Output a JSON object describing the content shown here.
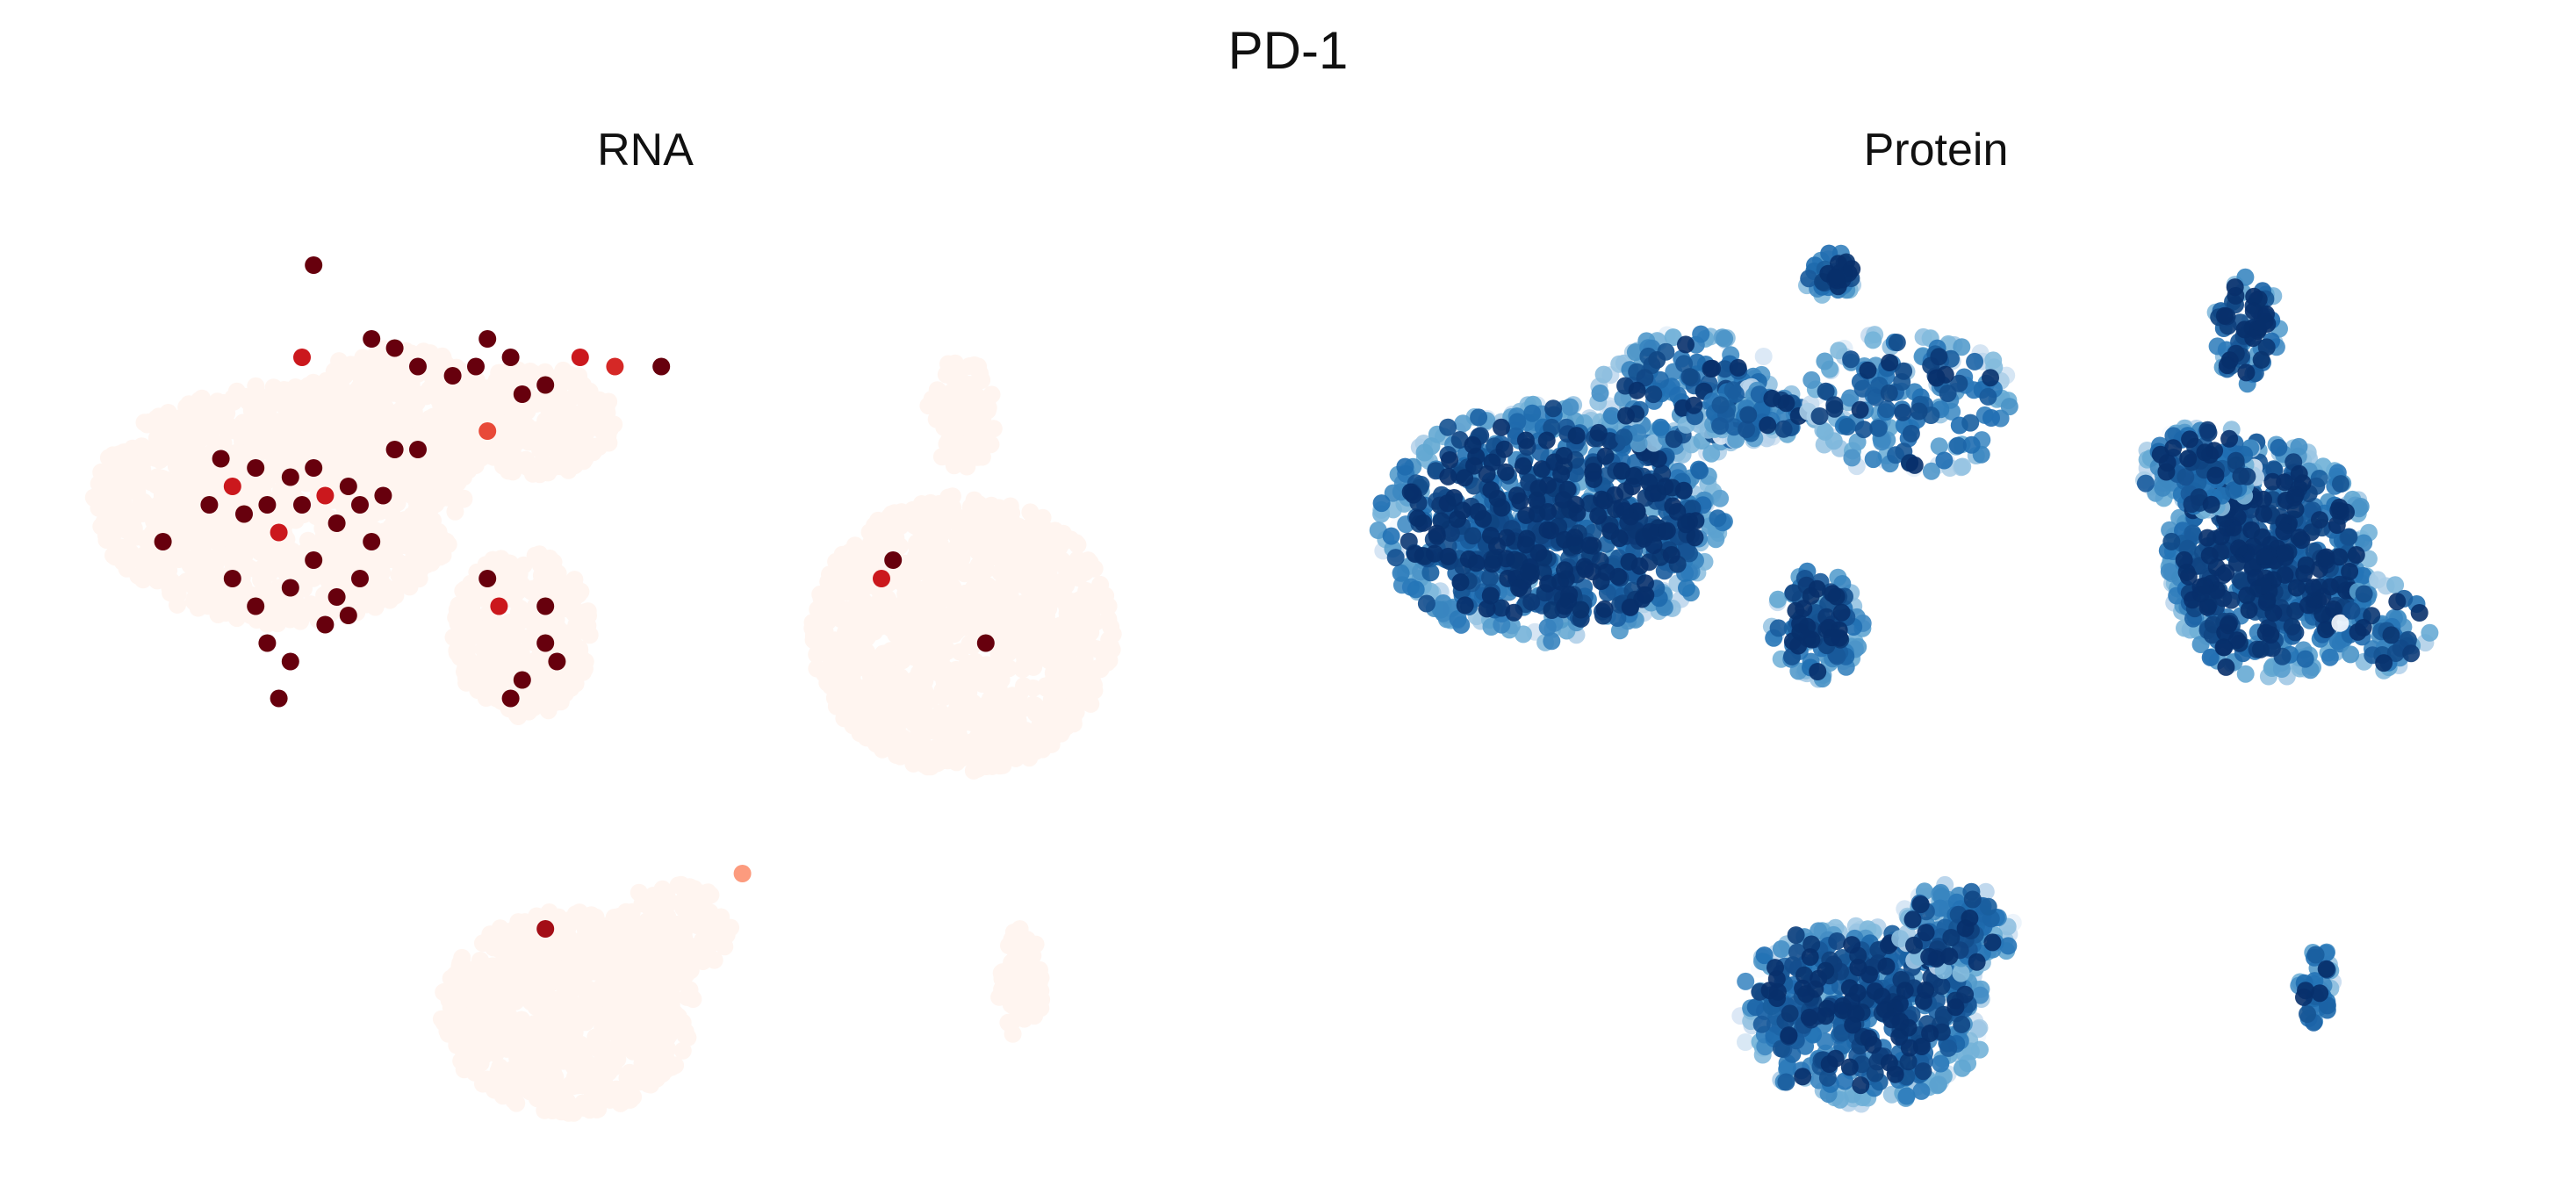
{
  "figure": {
    "title": "PD-1"
  },
  "chart_data": [
    {
      "type": "scatter",
      "title": "RNA",
      "xlabel": "",
      "ylabel": "",
      "axes_visible": false,
      "grid": false,
      "legend": "none",
      "xlim": [
        0,
        100
      ],
      "ylim": [
        0,
        100
      ],
      "colormap": "Reds",
      "colormap_stops": [
        "#fff5f0",
        "#fcbba1",
        "#fb6a4a",
        "#cb181d",
        "#67000d"
      ],
      "background_clusters": [
        {
          "cx": 18,
          "cy": 70,
          "rx": 16,
          "ry": 13
        },
        {
          "cx": 28,
          "cy": 79,
          "rx": 9,
          "ry": 8
        },
        {
          "cx": 40,
          "cy": 79,
          "rx": 7,
          "ry": 6
        },
        {
          "cx": 39,
          "cy": 56,
          "rx": 6,
          "ry": 9
        },
        {
          "cx": 77,
          "cy": 56,
          "rx": 13,
          "ry": 15
        },
        {
          "cx": 77,
          "cy": 80,
          "rx": 3,
          "ry": 6
        },
        {
          "cx": 43,
          "cy": 15,
          "rx": 11,
          "ry": 11
        },
        {
          "cx": 52,
          "cy": 24,
          "rx": 5,
          "ry": 5
        },
        {
          "cx": 82,
          "cy": 18,
          "rx": 2,
          "ry": 6
        }
      ],
      "expressing_cells": [
        {
          "x": 21,
          "y": 96,
          "v": 1.0
        },
        {
          "x": 20,
          "y": 86,
          "v": 0.75
        },
        {
          "x": 26,
          "y": 88,
          "v": 1.0
        },
        {
          "x": 28,
          "y": 87,
          "v": 1.0
        },
        {
          "x": 30,
          "y": 85,
          "v": 1.0
        },
        {
          "x": 33,
          "y": 84,
          "v": 1.0
        },
        {
          "x": 35,
          "y": 85,
          "v": 1.0
        },
        {
          "x": 36,
          "y": 88,
          "v": 1.0
        },
        {
          "x": 38,
          "y": 86,
          "v": 1.0
        },
        {
          "x": 39,
          "y": 82,
          "v": 1.0
        },
        {
          "x": 41,
          "y": 83,
          "v": 1.0
        },
        {
          "x": 44,
          "y": 86,
          "v": 0.75
        },
        {
          "x": 51,
          "y": 85,
          "v": 1.0
        },
        {
          "x": 8,
          "y": 66,
          "v": 1.0
        },
        {
          "x": 12,
          "y": 70,
          "v": 1.0
        },
        {
          "x": 13,
          "y": 75,
          "v": 1.0
        },
        {
          "x": 14,
          "y": 72,
          "v": 0.75
        },
        {
          "x": 15,
          "y": 69,
          "v": 1.0
        },
        {
          "x": 16,
          "y": 74,
          "v": 1.0
        },
        {
          "x": 17,
          "y": 70,
          "v": 1.0
        },
        {
          "x": 18,
          "y": 67,
          "v": 0.75
        },
        {
          "x": 19,
          "y": 73,
          "v": 1.0
        },
        {
          "x": 20,
          "y": 70,
          "v": 1.0
        },
        {
          "x": 21,
          "y": 74,
          "v": 1.0
        },
        {
          "x": 22,
          "y": 71,
          "v": 0.75
        },
        {
          "x": 23,
          "y": 68,
          "v": 1.0
        },
        {
          "x": 24,
          "y": 72,
          "v": 1.0
        },
        {
          "x": 25,
          "y": 70,
          "v": 1.0
        },
        {
          "x": 26,
          "y": 66,
          "v": 1.0
        },
        {
          "x": 27,
          "y": 71,
          "v": 1.0
        },
        {
          "x": 14,
          "y": 62,
          "v": 1.0
        },
        {
          "x": 16,
          "y": 59,
          "v": 1.0
        },
        {
          "x": 19,
          "y": 61,
          "v": 1.0
        },
        {
          "x": 21,
          "y": 64,
          "v": 1.0
        },
        {
          "x": 23,
          "y": 60,
          "v": 1.0
        },
        {
          "x": 25,
          "y": 62,
          "v": 1.0
        },
        {
          "x": 17,
          "y": 55,
          "v": 1.0
        },
        {
          "x": 19,
          "y": 53,
          "v": 1.0
        },
        {
          "x": 22,
          "y": 57,
          "v": 1.0
        },
        {
          "x": 24,
          "y": 58,
          "v": 1.0
        },
        {
          "x": 18,
          "y": 49,
          "v": 1.0
        },
        {
          "x": 28,
          "y": 76,
          "v": 1.0
        },
        {
          "x": 30,
          "y": 76,
          "v": 1.0
        },
        {
          "x": 36,
          "y": 78,
          "v": 0.6
        },
        {
          "x": 47,
          "y": 85,
          "v": 0.7
        },
        {
          "x": 36,
          "y": 62,
          "v": 1.0
        },
        {
          "x": 37,
          "y": 59,
          "v": 0.75
        },
        {
          "x": 41,
          "y": 55,
          "v": 1.0
        },
        {
          "x": 42,
          "y": 53,
          "v": 1.0
        },
        {
          "x": 39,
          "y": 51,
          "v": 1.0
        },
        {
          "x": 38,
          "y": 49,
          "v": 1.0
        },
        {
          "x": 41,
          "y": 59,
          "v": 1.0
        },
        {
          "x": 71,
          "y": 64,
          "v": 1.0
        },
        {
          "x": 70,
          "y": 62,
          "v": 0.75
        },
        {
          "x": 79,
          "y": 55,
          "v": 1.0
        },
        {
          "x": 41,
          "y": 24,
          "v": 0.85
        },
        {
          "x": 58,
          "y": 30,
          "v": 0.35
        }
      ]
    },
    {
      "type": "scatter",
      "title": "Protein",
      "xlabel": "",
      "ylabel": "",
      "axes_visible": false,
      "grid": false,
      "legend": "none",
      "xlim": [
        0,
        100
      ],
      "ylim": [
        0,
        100
      ],
      "colormap": "Blues",
      "colormap_stops": [
        "#f7fbff",
        "#c6dbef",
        "#6baed6",
        "#2171b5",
        "#08306b"
      ],
      "clusters": [
        {
          "cx": 16,
          "cy": 68,
          "rx": 15,
          "ry": 13,
          "n": 900,
          "mean_v": 0.85
        },
        {
          "cx": 28,
          "cy": 82,
          "rx": 8,
          "ry": 7,
          "n": 160,
          "mean_v": 0.75
        },
        {
          "cx": 33,
          "cy": 80,
          "rx": 6,
          "ry": 3,
          "n": 80,
          "mean_v": 0.7
        },
        {
          "cx": 40,
          "cy": 95,
          "rx": 2.5,
          "ry": 2.5,
          "n": 40,
          "mean_v": 0.85
        },
        {
          "cx": 47,
          "cy": 81,
          "rx": 9,
          "ry": 8,
          "n": 180,
          "mean_v": 0.7
        },
        {
          "cx": 39,
          "cy": 57,
          "rx": 4,
          "ry": 6,
          "n": 120,
          "mean_v": 0.8
        },
        {
          "cx": 78,
          "cy": 64,
          "rx": 9,
          "ry": 13,
          "n": 600,
          "mean_v": 0.88
        },
        {
          "cx": 72,
          "cy": 74,
          "rx": 5,
          "ry": 5,
          "n": 140,
          "mean_v": 0.75
        },
        {
          "cx": 76,
          "cy": 89,
          "rx": 3,
          "ry": 6,
          "n": 80,
          "mean_v": 0.85
        },
        {
          "cx": 88,
          "cy": 57,
          "rx": 4,
          "ry": 5,
          "n": 60,
          "mean_v": 0.75
        },
        {
          "cx": 43,
          "cy": 15,
          "rx": 11,
          "ry": 10,
          "n": 500,
          "mean_v": 0.8
        },
        {
          "cx": 51,
          "cy": 24,
          "rx": 5,
          "ry": 5,
          "n": 120,
          "mean_v": 0.75
        },
        {
          "cx": 82,
          "cy": 18,
          "rx": 1.5,
          "ry": 5,
          "n": 40,
          "mean_v": 0.8
        }
      ]
    }
  ]
}
